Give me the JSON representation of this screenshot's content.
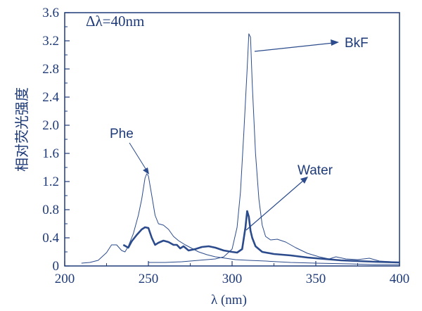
{
  "chart_data": {
    "type": "line",
    "annotation_text": "Δλ=40nm",
    "xlabel": "λ (nm)",
    "ylabel": "相对荧光强度",
    "xlim": [
      200,
      400
    ],
    "ylim": [
      0,
      3.6
    ],
    "x_ticks": [
      200,
      250,
      300,
      350,
      400
    ],
    "y_ticks": [
      0,
      0.4,
      0.8,
      1.2,
      1.6,
      2.0,
      2.4,
      2.8,
      3.2,
      3.6
    ],
    "x_tick_labels": [
      "200",
      "250",
      "300",
      "350",
      "400"
    ],
    "y_tick_labels": [
      "0",
      "0.4",
      "0.8",
      "1.2",
      "1.6",
      "2.0",
      "2.4",
      "2.8",
      "3.2",
      "3.6"
    ],
    "grid": false,
    "colors": {
      "axis": "#1e3a78",
      "series": "#2b4b8c"
    },
    "series": [
      {
        "name": "Phe",
        "label_text": "Phe",
        "stroke": "thin",
        "points": [
          [
            210,
            0.04
          ],
          [
            215,
            0.05
          ],
          [
            220,
            0.08
          ],
          [
            225,
            0.19
          ],
          [
            228,
            0.3
          ],
          [
            231,
            0.3
          ],
          [
            234,
            0.22
          ],
          [
            236,
            0.2
          ],
          [
            238,
            0.28
          ],
          [
            241,
            0.46
          ],
          [
            244,
            0.72
          ],
          [
            246,
            0.95
          ],
          [
            248,
            1.25
          ],
          [
            249,
            1.31
          ],
          [
            250,
            1.28
          ],
          [
            252,
            1.0
          ],
          [
            254,
            0.72
          ],
          [
            256,
            0.6
          ],
          [
            259,
            0.58
          ],
          [
            262,
            0.52
          ],
          [
            265,
            0.42
          ],
          [
            268,
            0.36
          ],
          [
            272,
            0.3
          ],
          [
            276,
            0.25
          ],
          [
            280,
            0.2
          ],
          [
            285,
            0.16
          ],
          [
            290,
            0.13
          ],
          [
            296,
            0.11
          ],
          [
            302,
            0.09
          ],
          [
            310,
            0.08
          ],
          [
            320,
            0.07
          ],
          [
            335,
            0.05
          ],
          [
            350,
            0.04
          ],
          [
            370,
            0.03
          ],
          [
            385,
            0.02
          ],
          [
            400,
            0.02
          ]
        ]
      },
      {
        "name": "BkF",
        "label_text": "BkF",
        "stroke": "thin",
        "points": [
          [
            250,
            0.05
          ],
          [
            260,
            0.05
          ],
          [
            270,
            0.06
          ],
          [
            280,
            0.08
          ],
          [
            290,
            0.1
          ],
          [
            295,
            0.13
          ],
          [
            300,
            0.24
          ],
          [
            303,
            0.55
          ],
          [
            305,
            1.05
          ],
          [
            307,
            1.9
          ],
          [
            309,
            2.8
          ],
          [
            310,
            3.3
          ],
          [
            311,
            3.25
          ],
          [
            312,
            2.6
          ],
          [
            314,
            1.6
          ],
          [
            316,
            0.95
          ],
          [
            318,
            0.58
          ],
          [
            320,
            0.42
          ],
          [
            323,
            0.37
          ],
          [
            327,
            0.38
          ],
          [
            332,
            0.34
          ],
          [
            338,
            0.26
          ],
          [
            345,
            0.18
          ],
          [
            352,
            0.13
          ],
          [
            358,
            0.1
          ],
          [
            362,
            0.13
          ],
          [
            368,
            0.1
          ],
          [
            375,
            0.09
          ],
          [
            382,
            0.11
          ],
          [
            388,
            0.07
          ],
          [
            395,
            0.06
          ],
          [
            400,
            0.05
          ]
        ]
      },
      {
        "name": "Water",
        "label_text": "Water",
        "stroke": "thick",
        "points": [
          [
            235,
            0.3
          ],
          [
            238,
            0.26
          ],
          [
            240,
            0.35
          ],
          [
            243,
            0.44
          ],
          [
            246,
            0.52
          ],
          [
            248,
            0.55
          ],
          [
            250,
            0.54
          ],
          [
            252,
            0.4
          ],
          [
            254,
            0.3
          ],
          [
            256,
            0.33
          ],
          [
            259,
            0.36
          ],
          [
            262,
            0.34
          ],
          [
            265,
            0.3
          ],
          [
            267,
            0.3
          ],
          [
            269,
            0.25
          ],
          [
            271,
            0.28
          ],
          [
            274,
            0.22
          ],
          [
            278,
            0.24
          ],
          [
            282,
            0.27
          ],
          [
            286,
            0.28
          ],
          [
            290,
            0.26
          ],
          [
            295,
            0.22
          ],
          [
            300,
            0.2
          ],
          [
            303,
            0.19
          ],
          [
            306,
            0.24
          ],
          [
            308,
            0.55
          ],
          [
            309,
            0.78
          ],
          [
            310,
            0.7
          ],
          [
            311,
            0.5
          ],
          [
            312,
            0.4
          ],
          [
            314,
            0.28
          ],
          [
            318,
            0.2
          ],
          [
            325,
            0.17
          ],
          [
            335,
            0.15
          ],
          [
            345,
            0.12
          ],
          [
            355,
            0.1
          ],
          [
            365,
            0.08
          ],
          [
            375,
            0.07
          ],
          [
            385,
            0.06
          ],
          [
            400,
            0.05
          ]
        ]
      }
    ]
  }
}
